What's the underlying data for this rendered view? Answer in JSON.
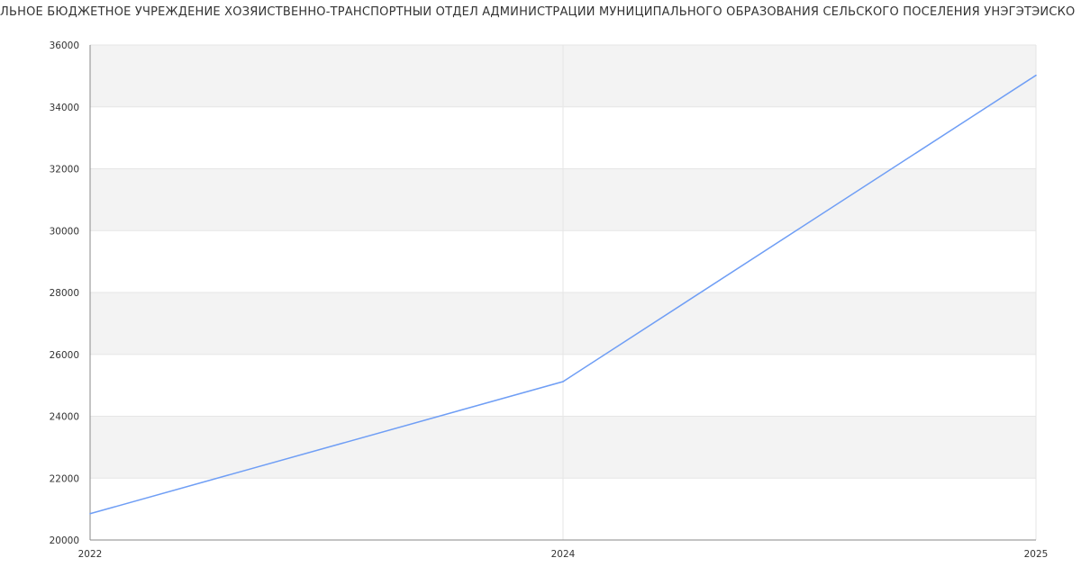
{
  "chart_data": {
    "type": "line",
    "title": "ЛЬНОЕ БЮДЖЕТНОЕ УЧРЕЖДЕНИЕ ХОЗЯЙСТВЕННО-ТРАНСПОРТНЫЙ ОТДЕЛ АДМИНИСТРАЦИИ МУНИЦИПАЛЬНОГО ОБРАЗОВАНИЯ СЕЛЬСКОГО ПОСЕЛЕНИЯ УНЭГЭТЭЙСКО",
    "categories": [
      "2022",
      "2024",
      "2025"
    ],
    "series": [
      {
        "values": [
          20850,
          25120,
          35020
        ],
        "color": "#6f9ef5"
      }
    ],
    "ylim": [
      20000,
      36000
    ],
    "yticks": [
      "20000",
      "22000",
      "24000",
      "26000",
      "28000",
      "30000",
      "32000",
      "34000",
      "36000"
    ],
    "grid": true,
    "band_color": "#f3f3f3"
  }
}
